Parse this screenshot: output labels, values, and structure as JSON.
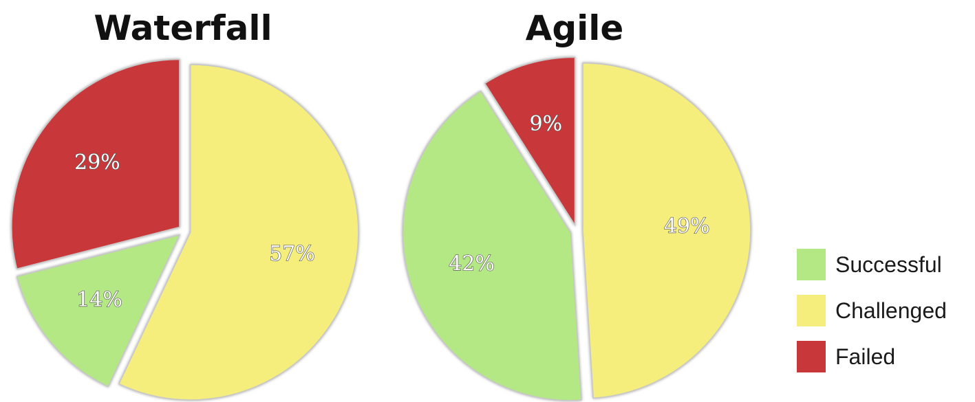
{
  "chart_data": [
    {
      "type": "pie",
      "title": "Waterfall",
      "slices": [
        {
          "name": "Challenged",
          "value": 57,
          "label": "57%",
          "color": "#f6ee7c"
        },
        {
          "name": "Successful",
          "value": 14,
          "label": "14%",
          "color": "#b4e884"
        },
        {
          "name": "Failed",
          "value": 29,
          "label": "29%",
          "color": "#c8373a"
        }
      ]
    },
    {
      "type": "pie",
      "title": "Agile",
      "slices": [
        {
          "name": "Challenged",
          "value": 49,
          "label": "49%",
          "color": "#f6ee7c"
        },
        {
          "name": "Successful",
          "value": 42,
          "label": "42%",
          "color": "#b4e884"
        },
        {
          "name": "Failed",
          "value": 9,
          "label": "9%",
          "color": "#c8373a"
        }
      ]
    }
  ],
  "legend": {
    "placement": "bottom-right",
    "items": [
      {
        "label": "Successful",
        "color": "#b4e884"
      },
      {
        "label": "Challenged",
        "color": "#f6ee7c"
      },
      {
        "label": "Failed",
        "color": "#c8373a"
      }
    ]
  }
}
